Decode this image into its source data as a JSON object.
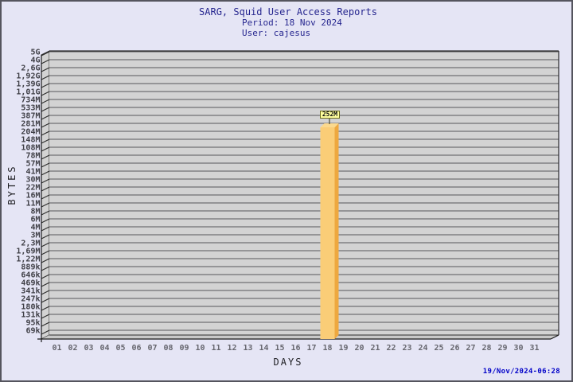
{
  "header": {
    "title": "SARG, Squid User Access Reports",
    "period_line": "Period: 18 Nov 2024",
    "user_line": "User: cajesus"
  },
  "footer": {
    "timestamp": "19/Nov/2024-06:28"
  },
  "chart_data": {
    "type": "bar",
    "title": "SARG, Squid User Access Reports",
    "period": "18 Nov 2024",
    "user": "cajesus",
    "xlabel": "DAYS",
    "ylabel": "BYTES",
    "x_tick_labels": [
      "01",
      "02",
      "03",
      "04",
      "05",
      "06",
      "07",
      "08",
      "09",
      "10",
      "11",
      "12",
      "13",
      "14",
      "15",
      "16",
      "17",
      "18",
      "19",
      "20",
      "21",
      "22",
      "23",
      "24",
      "25",
      "26",
      "27",
      "28",
      "29",
      "30",
      "31"
    ],
    "y_tick_labels": [
      "5G",
      "4G",
      "2,6G",
      "1,92G",
      "1,39G",
      "1,01G",
      "734M",
      "533M",
      "387M",
      "281M",
      "204M",
      "148M",
      "108M",
      "78M",
      "57M",
      "41M",
      "30M",
      "22M",
      "16M",
      "11M",
      "8M",
      "6M",
      "4M",
      "3M",
      "2,3M",
      "1,69M",
      "1,22M",
      "889k",
      "646k",
      "469k",
      "341k",
      "247k",
      "180k",
      "131k",
      "95k",
      "69k"
    ],
    "y_axis_style": "logarithmic-like byte scale, 69k at bottom to 5G at top",
    "bars": [
      {
        "x": "18",
        "label": "252M",
        "approx_bytes": 252000000
      }
    ],
    "legend": null,
    "grid": "horizontal lines on 3D gray panel",
    "timestamp": "19/Nov/2024-06:28",
    "colors": {
      "page_bg": "#E5E5F5",
      "plot_face": "#D3D3D3",
      "plot_floor": "#C8C8C8",
      "grid_line": "#57575B",
      "bar_front": "#FACD77",
      "bar_side": "#EEA83F",
      "bar_top": "#FBD98E",
      "bar_label_bg": "#FFFF9E",
      "title_text": "#26268F",
      "timestamp_text": "#0000C8"
    }
  }
}
